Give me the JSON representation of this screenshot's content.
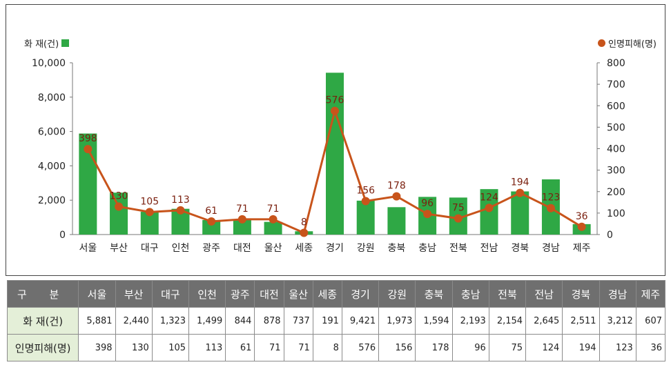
{
  "chart_data": {
    "type": "bar+line",
    "categories": [
      "서울",
      "부산",
      "대구",
      "인천",
      "광주",
      "대전",
      "울산",
      "세종",
      "경기",
      "강원",
      "충북",
      "충남",
      "전북",
      "전남",
      "경북",
      "경남",
      "제주"
    ],
    "series": [
      {
        "name": "화 재(건)",
        "type": "bar",
        "axis": "left",
        "color": "#2fa845",
        "values": [
          5881,
          2440,
          1323,
          1499,
          844,
          878,
          737,
          191,
          9421,
          1973,
          1594,
          2193,
          2154,
          2645,
          2511,
          3212,
          607
        ]
      },
      {
        "name": "인명피해(명)",
        "type": "line",
        "axis": "right",
        "color": "#c8541b",
        "values": [
          398,
          130,
          105,
          113,
          61,
          71,
          71,
          8,
          576,
          156,
          178,
          96,
          75,
          124,
          194,
          123,
          36
        ]
      }
    ],
    "y_left": {
      "range": [
        0,
        10000
      ],
      "ticks": [
        "0",
        "2,000",
        "4,000",
        "6,000",
        "8,000",
        "10,000"
      ]
    },
    "y_right": {
      "range": [
        0,
        800
      ],
      "ticks": [
        "0",
        "100",
        "200",
        "300",
        "400",
        "500",
        "600",
        "700",
        "800"
      ]
    },
    "legend_left": "top-left",
    "legend_right": "top-right",
    "grid": false,
    "line_label_color": "#7a1f0e"
  },
  "table": {
    "header_label": "구 분",
    "regions": [
      "서울",
      "부산",
      "대구",
      "인천",
      "광주",
      "대전",
      "울산",
      "세종",
      "경기",
      "강원",
      "충북",
      "충남",
      "전북",
      "전남",
      "경북",
      "경남",
      "제주"
    ],
    "rows": [
      {
        "label": "화 재(건)",
        "values": [
          "5,881",
          "2,440",
          "1,323",
          "1,499",
          "844",
          "878",
          "737",
          "191",
          "9,421",
          "1,973",
          "1,594",
          "2,193",
          "2,154",
          "2,645",
          "2,511",
          "3,212",
          "607"
        ]
      },
      {
        "label": "인명피해(명)",
        "values": [
          "398",
          "130",
          "105",
          "113",
          "61",
          "71",
          "71",
          "8",
          "576",
          "156",
          "178",
          "96",
          "75",
          "124",
          "194",
          "123",
          "36"
        ]
      }
    ]
  }
}
